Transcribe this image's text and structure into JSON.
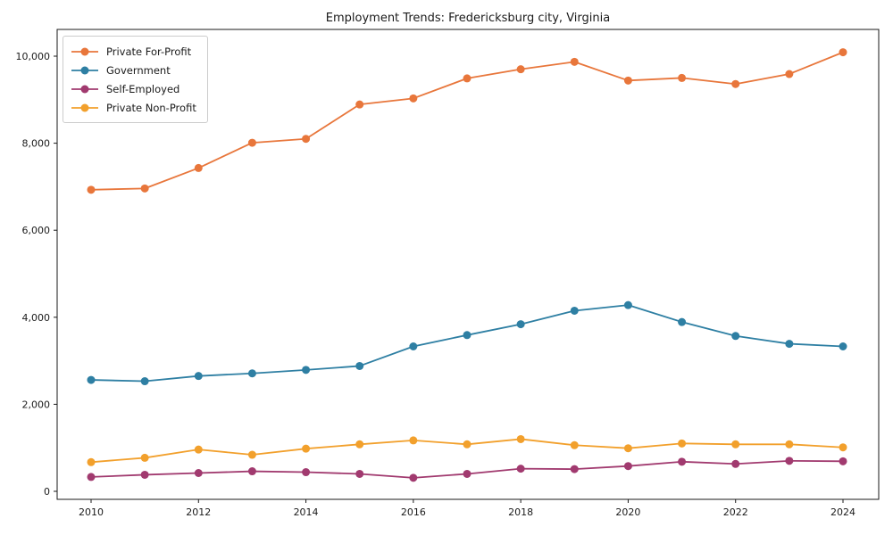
{
  "chart_data": {
    "type": "line",
    "title": "Employment Trends: Fredericksburg city, Virginia",
    "xlabel": "",
    "ylabel": "",
    "x": [
      2010,
      2011,
      2012,
      2013,
      2014,
      2015,
      2016,
      2017,
      2018,
      2019,
      2020,
      2021,
      2022,
      2023,
      2024
    ],
    "series": [
      {
        "name": "Private For-Profit",
        "color": "#e8763b",
        "values": [
          6930,
          6960,
          7430,
          8010,
          8100,
          8890,
          9030,
          9490,
          9700,
          9870,
          9440,
          9500,
          9360,
          9590,
          10090
        ]
      },
      {
        "name": "Government",
        "color": "#2e7fa3",
        "values": [
          2560,
          2530,
          2650,
          2710,
          2790,
          2880,
          3330,
          3590,
          3840,
          4150,
          4280,
          3890,
          3570,
          3390,
          3330
        ]
      },
      {
        "name": "Self-Employed",
        "color": "#a13a6f",
        "values": [
          330,
          380,
          420,
          460,
          440,
          400,
          310,
          400,
          520,
          510,
          580,
          680,
          630,
          700,
          690
        ]
      },
      {
        "name": "Private Non-Profit",
        "color": "#f2a02c",
        "values": [
          670,
          770,
          960,
          840,
          980,
          1080,
          1170,
          1080,
          1200,
          1060,
          990,
          1100,
          1080,
          1080,
          1010
        ]
      }
    ],
    "xticks": [
      2010,
      2012,
      2014,
      2016,
      2018,
      2020,
      2022,
      2024
    ],
    "yticks": [
      0,
      2000,
      4000,
      6000,
      8000,
      10000
    ],
    "ytick_labels": [
      "0",
      "2,000",
      "4,000",
      "6,000",
      "8,000",
      "10,000"
    ],
    "ylim": [
      0,
      10600
    ],
    "xlim": [
      2009.4,
      2024.6
    ],
    "grid": false,
    "legend_position": "upper-left",
    "marker": "circle",
    "spine_color": "#1a1a1a"
  }
}
